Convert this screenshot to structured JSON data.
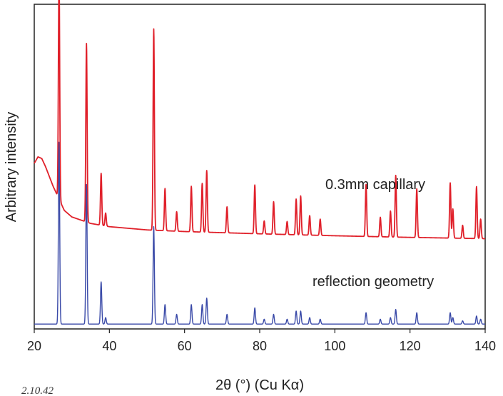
{
  "chart_data": {
    "type": "line",
    "xlabel": "2θ (°) (Cu Kα)",
    "ylabel": "Arbitrary intensity",
    "xlim": [
      20,
      140
    ],
    "ylim": [
      0,
      100
    ],
    "xticks": [
      "20",
      "40",
      "60",
      "80",
      "100",
      "120",
      "140"
    ],
    "grid": false,
    "legend": "none",
    "annotations": [
      "0.3mm capillary",
      "reflection geometry"
    ],
    "stray_text": "2.10.42",
    "series": [
      {
        "color": "#e0202a",
        "baseline": {
          "x": [
            20,
            21,
            22,
            23,
            24,
            25,
            26,
            28,
            30,
            35,
            40,
            45,
            50,
            60,
            80,
            100,
            120,
            140
          ],
          "y": [
            51,
            53,
            52.5,
            50,
            47,
            44,
            41.5,
            36.5,
            34.5,
            32.5,
            31.5,
            31,
            30.5,
            30,
            29.3,
            28.7,
            28.2,
            27.8
          ]
        },
        "peaks": [
          {
            "x": 26.6,
            "h": 70
          },
          {
            "x": 33.9,
            "h": 55
          },
          {
            "x": 37.8,
            "h": 16
          },
          {
            "x": 39.0,
            "h": 4
          },
          {
            "x": 51.8,
            "h": 62
          },
          {
            "x": 54.8,
            "h": 13
          },
          {
            "x": 57.9,
            "h": 6
          },
          {
            "x": 61.8,
            "h": 14
          },
          {
            "x": 64.7,
            "h": 15
          },
          {
            "x": 65.9,
            "h": 19
          },
          {
            "x": 71.3,
            "h": 8
          },
          {
            "x": 78.7,
            "h": 15
          },
          {
            "x": 81.2,
            "h": 4
          },
          {
            "x": 83.7,
            "h": 10
          },
          {
            "x": 87.3,
            "h": 4
          },
          {
            "x": 89.7,
            "h": 11
          },
          {
            "x": 90.9,
            "h": 12
          },
          {
            "x": 93.3,
            "h": 6
          },
          {
            "x": 96.1,
            "h": 5
          },
          {
            "x": 108.3,
            "h": 16
          },
          {
            "x": 112.1,
            "h": 6
          },
          {
            "x": 114.8,
            "h": 8
          },
          {
            "x": 116.2,
            "h": 19
          },
          {
            "x": 121.8,
            "h": 15
          },
          {
            "x": 130.7,
            "h": 17
          },
          {
            "x": 131.4,
            "h": 9
          },
          {
            "x": 134.0,
            "h": 4
          },
          {
            "x": 137.7,
            "h": 16
          },
          {
            "x": 138.8,
            "h": 6
          }
        ]
      },
      {
        "color": "#3a4aa8",
        "baseline": {
          "x": [
            20,
            140
          ],
          "y": [
            1.5,
            1.5
          ]
        },
        "peaks": [
          {
            "x": 26.6,
            "h": 56
          },
          {
            "x": 33.9,
            "h": 43
          },
          {
            "x": 37.8,
            "h": 13
          },
          {
            "x": 39.0,
            "h": 2
          },
          {
            "x": 51.8,
            "h": 30
          },
          {
            "x": 54.8,
            "h": 6
          },
          {
            "x": 57.9,
            "h": 3
          },
          {
            "x": 61.8,
            "h": 6
          },
          {
            "x": 64.7,
            "h": 6
          },
          {
            "x": 65.9,
            "h": 8
          },
          {
            "x": 71.3,
            "h": 3
          },
          {
            "x": 78.7,
            "h": 5
          },
          {
            "x": 81.2,
            "h": 1.5
          },
          {
            "x": 83.7,
            "h": 3
          },
          {
            "x": 87.3,
            "h": 1.5
          },
          {
            "x": 89.7,
            "h": 4
          },
          {
            "x": 90.9,
            "h": 4
          },
          {
            "x": 93.3,
            "h": 2
          },
          {
            "x": 96.1,
            "h": 1.5
          },
          {
            "x": 108.3,
            "h": 3.5
          },
          {
            "x": 112.1,
            "h": 1.5
          },
          {
            "x": 114.8,
            "h": 2
          },
          {
            "x": 116.2,
            "h": 4.5
          },
          {
            "x": 121.8,
            "h": 3.5
          },
          {
            "x": 130.7,
            "h": 3.5
          },
          {
            "x": 131.4,
            "h": 2
          },
          {
            "x": 134.0,
            "h": 1
          },
          {
            "x": 137.7,
            "h": 2.5
          },
          {
            "x": 138.8,
            "h": 1.5
          }
        ]
      }
    ]
  }
}
